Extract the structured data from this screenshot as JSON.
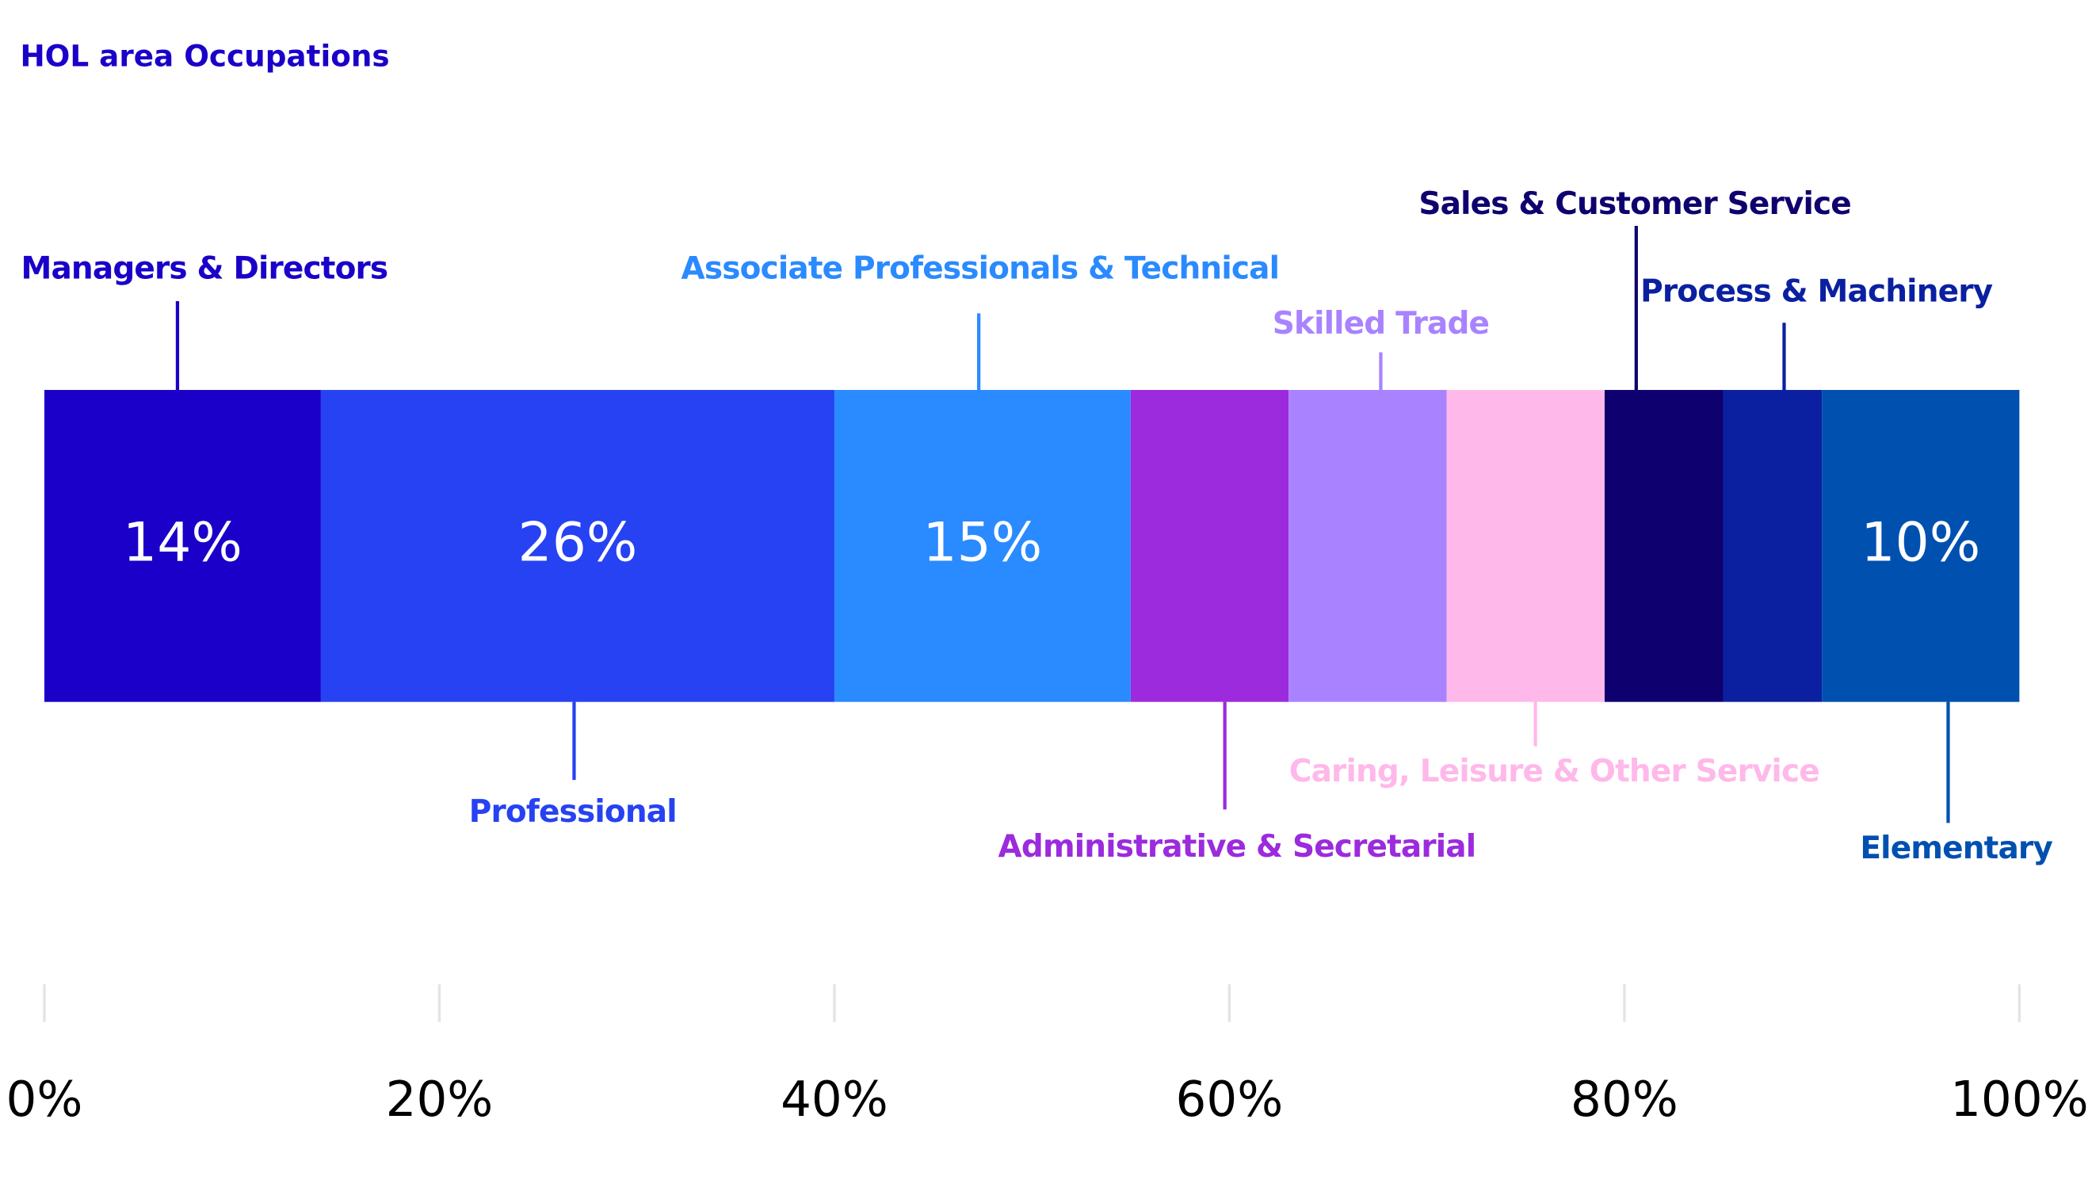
{
  "chart_data": {
    "type": "stacked_bar",
    "title": "HOL area Occupations",
    "series": [
      {
        "name": "Managers & Directors",
        "color": "#1a00c8",
        "values": [
          14
        ],
        "value_labels": [
          "14%"
        ]
      },
      {
        "name": "Professional",
        "color": "#2642f2",
        "values": [
          26
        ],
        "value_labels": [
          "26%"
        ]
      },
      {
        "name": "Associate Professionals & Technical",
        "color": "#2a8aff",
        "values": [
          15
        ],
        "value_labels": [
          "15%"
        ]
      },
      {
        "name": "Administrative & Secretarial",
        "color": "#9b2bdc",
        "values": [
          8
        ]
      },
      {
        "name": "Skilled Trade",
        "color": "#a983ff",
        "values": [
          8
        ]
      },
      {
        "name": "Caring, Leisure & Other Service",
        "color": "#ffb8ea",
        "values": [
          8
        ]
      },
      {
        "name": "Sales & Customer Service",
        "color": "#0e006e",
        "values": [
          6
        ]
      },
      {
        "name": "Process & Machinery",
        "color": "#0b20a0",
        "values": [
          5
        ]
      },
      {
        "name": "Elementary",
        "color": "#0050b0",
        "values": [
          10
        ],
        "value_labels": [
          "10%"
        ]
      }
    ],
    "xlim": [
      0,
      100
    ],
    "xticks": [
      {
        "value": 0,
        "label": "0%"
      },
      {
        "value": 20,
        "label": "20%"
      },
      {
        "value": 40,
        "label": "40%"
      },
      {
        "value": 60,
        "label": "60%"
      },
      {
        "value": 80,
        "label": "80%"
      },
      {
        "value": 100,
        "label": "100%"
      }
    ]
  }
}
